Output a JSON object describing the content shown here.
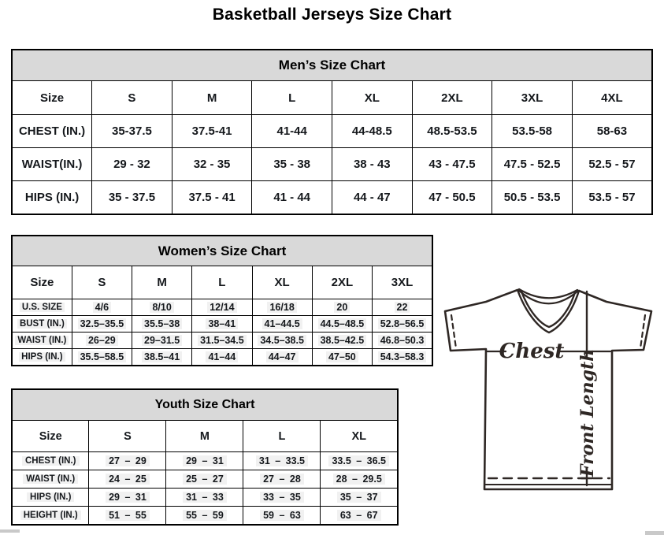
{
  "page": {
    "title": "Basketball Jerseys Size Chart"
  },
  "colors": {
    "table_header_bg": "#d9d9d9",
    "highlight_bg": "#f1f1f1",
    "line_color": "#2e2724"
  },
  "tables": [
    {
      "id": "mens",
      "title": "Men’s Size Chart",
      "columns": [
        "Size",
        "S",
        "M",
        "L",
        "XL",
        "2XL",
        "3XL",
        "4XL"
      ],
      "rows": [
        {
          "label": "CHEST (IN.)",
          "values": [
            "35-37.5",
            "37.5-41",
            "41-44",
            "44-48.5",
            "48.5-53.5",
            "53.5-58",
            "58-63"
          ]
        },
        {
          "label": "WAIST(IN.)",
          "values": [
            "29 - 32",
            "32 - 35",
            "35 - 38",
            "38 - 43",
            "43 - 47.5",
            "47.5 - 52.5",
            "52.5 - 57"
          ]
        },
        {
          "label": "HIPS (IN.)",
          "values": [
            "35 - 37.5",
            "37.5 - 41",
            "41 - 44",
            "44 - 47",
            "47 - 50.5",
            "50.5 - 53.5",
            "53.5 - 57"
          ]
        }
      ]
    },
    {
      "id": "womens",
      "title": "Women’s Size Chart",
      "columns": [
        "Size",
        "S",
        "M",
        "L",
        "XL",
        "2XL",
        "3XL"
      ],
      "rows": [
        {
          "label": "U.S. SIZE",
          "values": [
            "4/6",
            "8/10",
            "12/14",
            "16/18",
            "20",
            "22"
          ]
        },
        {
          "label": "BUST (IN.)",
          "values": [
            "32.5–35.5",
            "35.5–38",
            "38–41",
            "41–44.5",
            "44.5–48.5",
            "52.8–56.5"
          ]
        },
        {
          "label": "WAIST (IN.)",
          "values": [
            "26–29",
            "29–31.5",
            "31.5–34.5",
            "34.5–38.5",
            "38.5–42.5",
            "46.8–50.3"
          ]
        },
        {
          "label": "HIPS (IN.)",
          "values": [
            "35.5–58.5",
            "38.5–41",
            "41–44",
            "44–47",
            "47–50",
            "54.3–58.3"
          ]
        }
      ]
    },
    {
      "id": "youth",
      "title": "Youth Size Chart",
      "columns": [
        "Size",
        "S",
        "M",
        "L",
        "XL"
      ],
      "rows": [
        {
          "label": "CHEST (IN.)",
          "values": [
            "27 – 29",
            "29 – 31",
            "31 – 33.5",
            "33.5 – 36.5"
          ]
        },
        {
          "label": "WAIST (IN.)",
          "values": [
            "24 – 25",
            "25 – 27",
            "27 – 28",
            "28 – 29.5"
          ]
        },
        {
          "label": "HIPS (IN.)",
          "values": [
            "29 – 31",
            "31 – 33",
            "33 – 35",
            "35 – 37"
          ]
        },
        {
          "label": "HEIGHT (IN.)",
          "values": [
            "51 – 55",
            "55 – 59",
            "59 – 63",
            "63 – 67"
          ]
        }
      ]
    }
  ],
  "diagram": {
    "chest_label": "Chest",
    "front_length_label": "Front Length"
  }
}
